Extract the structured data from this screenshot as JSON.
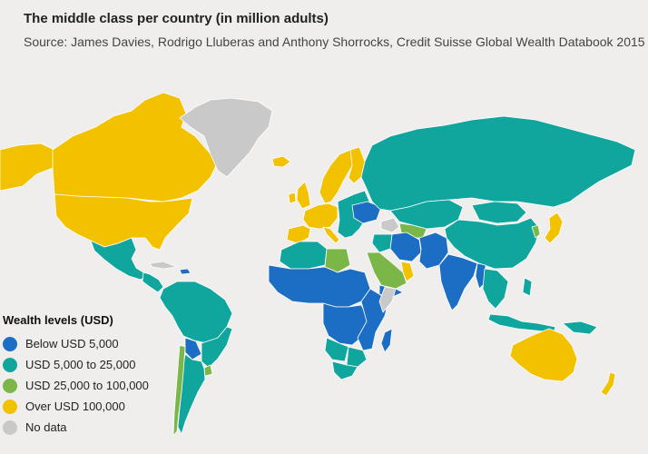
{
  "title": "The middle class per country (in million adults)",
  "subtitle": "Source: James Davies, Rodrigo Lluberas and Anthony Shorrocks, Credit Suisse Global Wealth Databook 2015",
  "colors": {
    "background": "#efeeec",
    "border": "#ffffff"
  },
  "legend": {
    "title": "Wealth levels (USD)",
    "items": [
      {
        "key": "low",
        "label": "Below USD 5,000",
        "color": "#1c6ec4"
      },
      {
        "key": "midlow",
        "label": "USD 5,000 to 25,000",
        "color": "#10a69e"
      },
      {
        "key": "midhigh",
        "label": "USD 25,000 to 100,000",
        "color": "#7ab648"
      },
      {
        "key": "high",
        "label": "Over USD 100,000",
        "color": "#f2c200"
      },
      {
        "key": "nodata",
        "label": "No data",
        "color": "#c9c9c9"
      }
    ]
  },
  "regions": [
    {
      "name": "canada",
      "category": "high"
    },
    {
      "name": "usa",
      "category": "high"
    },
    {
      "name": "alaska",
      "category": "high"
    },
    {
      "name": "greenland",
      "category": "nodata"
    },
    {
      "name": "iceland",
      "category": "high"
    },
    {
      "name": "mexico",
      "category": "midlow"
    },
    {
      "name": "central-america",
      "category": "midlow"
    },
    {
      "name": "cuba",
      "category": "nodata"
    },
    {
      "name": "haiti",
      "category": "low"
    },
    {
      "name": "brazil-north",
      "category": "midlow"
    },
    {
      "name": "brazil-south",
      "category": "midlow"
    },
    {
      "name": "chile",
      "category": "midhigh"
    },
    {
      "name": "argentina",
      "category": "midlow"
    },
    {
      "name": "uruguay",
      "category": "midhigh"
    },
    {
      "name": "bolivia",
      "category": "low"
    },
    {
      "name": "scandinavia",
      "category": "high"
    },
    {
      "name": "finland",
      "category": "high"
    },
    {
      "name": "west-europe",
      "category": "high"
    },
    {
      "name": "iberia",
      "category": "high"
    },
    {
      "name": "italy",
      "category": "high"
    },
    {
      "name": "uk",
      "category": "high"
    },
    {
      "name": "ireland",
      "category": "high"
    },
    {
      "name": "east-europe",
      "category": "midlow"
    },
    {
      "name": "ukraine",
      "category": "low"
    },
    {
      "name": "russia",
      "category": "midlow"
    },
    {
      "name": "central-asia",
      "category": "midlow"
    },
    {
      "name": "turkmenistan",
      "category": "midhigh"
    },
    {
      "name": "caucasus",
      "category": "nodata"
    },
    {
      "name": "mongolia",
      "category": "midlow"
    },
    {
      "name": "china",
      "category": "midlow"
    },
    {
      "name": "korea",
      "category": "midhigh"
    },
    {
      "name": "japan",
      "category": "high"
    },
    {
      "name": "north-africa",
      "category": "midlow"
    },
    {
      "name": "libya",
      "category": "midhigh"
    },
    {
      "name": "arabia",
      "category": "midhigh"
    },
    {
      "name": "gulf",
      "category": "high"
    },
    {
      "name": "yemen",
      "category": "low"
    },
    {
      "name": "iran",
      "category": "low"
    },
    {
      "name": "iraq",
      "category": "midlow"
    },
    {
      "name": "afghanistan-pakistan",
      "category": "low"
    },
    {
      "name": "india",
      "category": "low"
    },
    {
      "name": "myanmar",
      "category": "low"
    },
    {
      "name": "southeast-asia",
      "category": "midlow"
    },
    {
      "name": "indonesia",
      "category": "midlow"
    },
    {
      "name": "philippines",
      "category": "midlow"
    },
    {
      "name": "west-africa",
      "category": "low"
    },
    {
      "name": "central-africa",
      "category": "low"
    },
    {
      "name": "east-africa",
      "category": "low"
    },
    {
      "name": "somalia",
      "category": "nodata"
    },
    {
      "name": "angola",
      "category": "midlow"
    },
    {
      "name": "southern-africa",
      "category": "midlow"
    },
    {
      "name": "south-africa",
      "category": "midlow"
    },
    {
      "name": "madagascar",
      "category": "low"
    },
    {
      "name": "australia",
      "category": "high"
    },
    {
      "name": "new-zealand",
      "category": "high"
    },
    {
      "name": "papua",
      "category": "midlow"
    }
  ]
}
